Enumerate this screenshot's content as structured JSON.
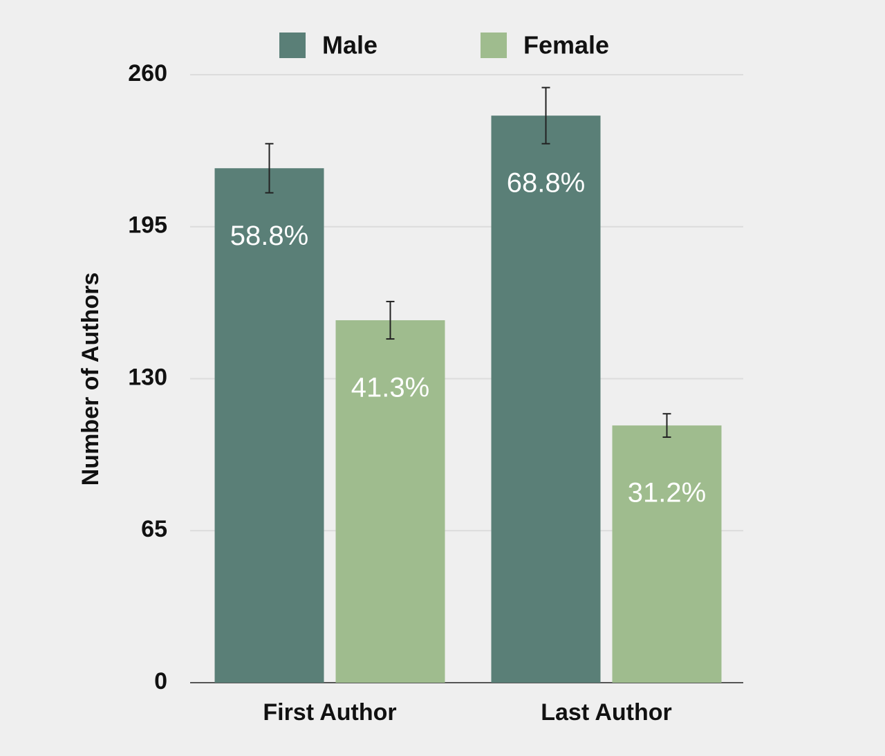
{
  "chart_data": {
    "type": "bar",
    "y_label": "Number of Authors",
    "categories": [
      "First Author",
      "Last Author"
    ],
    "series": [
      {
        "name": "Male",
        "color": "#5a7f77",
        "values": [
          220,
          242.5
        ],
        "errors": [
          10.5,
          12
        ],
        "labels": [
          "58.8%",
          "68.8%"
        ]
      },
      {
        "name": "Female",
        "color": "#9fbc8e",
        "values": [
          155,
          110
        ],
        "errors": [
          8,
          5
        ],
        "labels": [
          "41.3%",
          "31.2%"
        ]
      }
    ],
    "ylim": [
      0,
      260
    ],
    "yticks": [
      0,
      65,
      130,
      195,
      260
    ],
    "grid": true
  }
}
